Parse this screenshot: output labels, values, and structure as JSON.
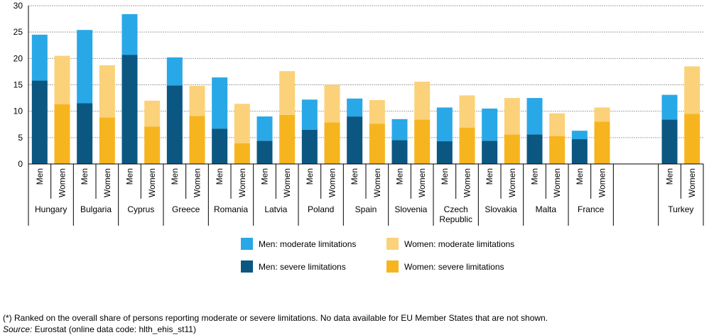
{
  "chart_data": {
    "type": "bar",
    "stacked": true,
    "ylim": [
      0,
      30
    ],
    "yticks": [
      0,
      5,
      10,
      15,
      20,
      25,
      30
    ],
    "grid": true,
    "genders": [
      "Men",
      "Women"
    ],
    "countries": [
      {
        "name": "Hungary",
        "men": {
          "severe": 15.8,
          "moderate": 8.7
        },
        "women": {
          "severe": 11.3,
          "moderate": 9.2
        }
      },
      {
        "name": "Bulgaria",
        "men": {
          "severe": 11.5,
          "moderate": 13.9
        },
        "women": {
          "severe": 8.8,
          "moderate": 9.9
        }
      },
      {
        "name": "Cyprus",
        "men": {
          "severe": 20.7,
          "moderate": 7.7
        },
        "women": {
          "severe": 7.1,
          "moderate": 4.9
        }
      },
      {
        "name": "Greece",
        "men": {
          "severe": 14.9,
          "moderate": 5.3
        },
        "women": {
          "severe": 9.1,
          "moderate": 5.7
        }
      },
      {
        "name": "Romania",
        "men": {
          "severe": 6.7,
          "moderate": 9.7
        },
        "women": {
          "severe": 3.9,
          "moderate": 7.5
        }
      },
      {
        "name": "Latvia",
        "men": {
          "severe": 4.4,
          "moderate": 4.6
        },
        "women": {
          "severe": 9.3,
          "moderate": 8.3
        }
      },
      {
        "name": "Poland",
        "men": {
          "severe": 6.5,
          "moderate": 5.7
        },
        "women": {
          "severe": 7.9,
          "moderate": 7.1
        }
      },
      {
        "name": "Spain",
        "men": {
          "severe": 9.0,
          "moderate": 3.4
        },
        "women": {
          "severe": 7.6,
          "moderate": 4.5
        }
      },
      {
        "name": "Slovenia",
        "men": {
          "severe": 4.5,
          "moderate": 4.0
        },
        "women": {
          "severe": 8.4,
          "moderate": 7.2
        }
      },
      {
        "name": "Czech Republic",
        "men": {
          "severe": 4.3,
          "moderate": 6.4
        },
        "women": {
          "severe": 6.9,
          "moderate": 6.1
        }
      },
      {
        "name": "Slovakia",
        "men": {
          "severe": 4.4,
          "moderate": 6.1
        },
        "women": {
          "severe": 5.6,
          "moderate": 6.9
        }
      },
      {
        "name": "Malta",
        "men": {
          "severe": 5.6,
          "moderate": 6.9
        },
        "women": {
          "severe": 5.3,
          "moderate": 4.3
        }
      },
      {
        "name": "France",
        "men": {
          "severe": 4.7,
          "moderate": 1.6
        },
        "women": {
          "severe": 8.0,
          "moderate": 2.7
        }
      },
      {
        "name": "",
        "gap": true
      },
      {
        "name": "Turkey",
        "men": {
          "severe": 8.4,
          "moderate": 4.7
        },
        "women": {
          "severe": 9.5,
          "moderate": 9.0
        }
      }
    ],
    "legend": {
      "men_moderate": "Men: moderate limitations",
      "women_moderate": "Women: moderate limitations",
      "men_severe": "Men: severe limitations",
      "women_severe": "Women: severe limitations"
    },
    "colors": {
      "men_moderate": "#29A8E7",
      "men_severe": "#0B5782",
      "women_moderate": "#FBD27A",
      "women_severe": "#F6B51F",
      "grid": "#A6A6A6",
      "axis": "#000000"
    }
  },
  "notes": {
    "footnote": "(*) Ranked on the overall share of persons reporting moderate or severe limitations. No data available for EU Member States that are not shown.",
    "source_label": "Source:",
    "source_text": " Eurostat (online data code: hlth_ehis_st11)"
  }
}
